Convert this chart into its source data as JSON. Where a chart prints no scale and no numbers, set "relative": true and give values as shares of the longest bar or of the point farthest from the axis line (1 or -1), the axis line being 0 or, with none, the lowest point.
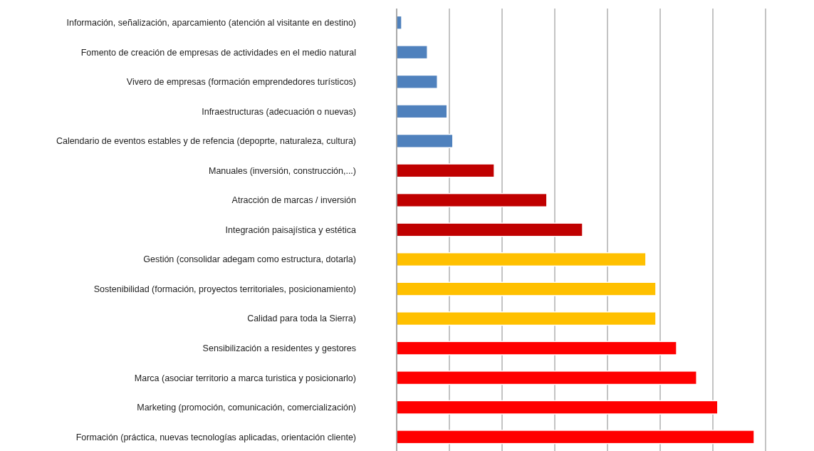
{
  "chart_data": {
    "type": "bar",
    "orientation": "horizontal",
    "relative": true,
    "grid": "x",
    "categories": [
      "Información, señalización, aparcamiento (atención al visitante en destino)",
      "Fomento de creación de empresas de actividades en el medio natural",
      "Vivero de empresas (formación emprendedores turísticos)",
      "Infraestructuras (adecuación o nuevas)",
      "Calendario de eventos estables y de refencia (depoprte, naturaleza, cultura)",
      "Manuales (inversión, construcción,...)",
      "Atracción de marcas / inversión",
      "Integración paisajística y estética",
      "Gestión (consolidar adegam como estructura, dotarla)",
      "Sostenibilidad (formación, proyectos territoriales, posicionamiento)",
      "Calidad para toda la Sierra)",
      "Sensibilización a residentes y gestores",
      "Marca (asociar territorio a marca turistica y posicionarlo)",
      "Marketing (promoción, comunicación, comercialización)",
      "Formación (práctica, nuevas tecnologías aplicadas, orientación cliente)"
    ],
    "values": [
      0.014,
      0.086,
      0.114,
      0.141,
      0.157,
      0.273,
      0.42,
      0.52,
      0.697,
      0.725,
      0.725,
      0.783,
      0.839,
      0.898,
      1
    ],
    "colors": [
      "#4f81bd",
      "#4f81bd",
      "#4f81bd",
      "#4f81bd",
      "#4f81bd",
      "#c00000",
      "#c00000",
      "#c00000",
      "#ffc000",
      "#ffc000",
      "#ffc000",
      "#ff0000",
      "#ff0000",
      "#ff0000",
      "#ff0000"
    ]
  }
}
